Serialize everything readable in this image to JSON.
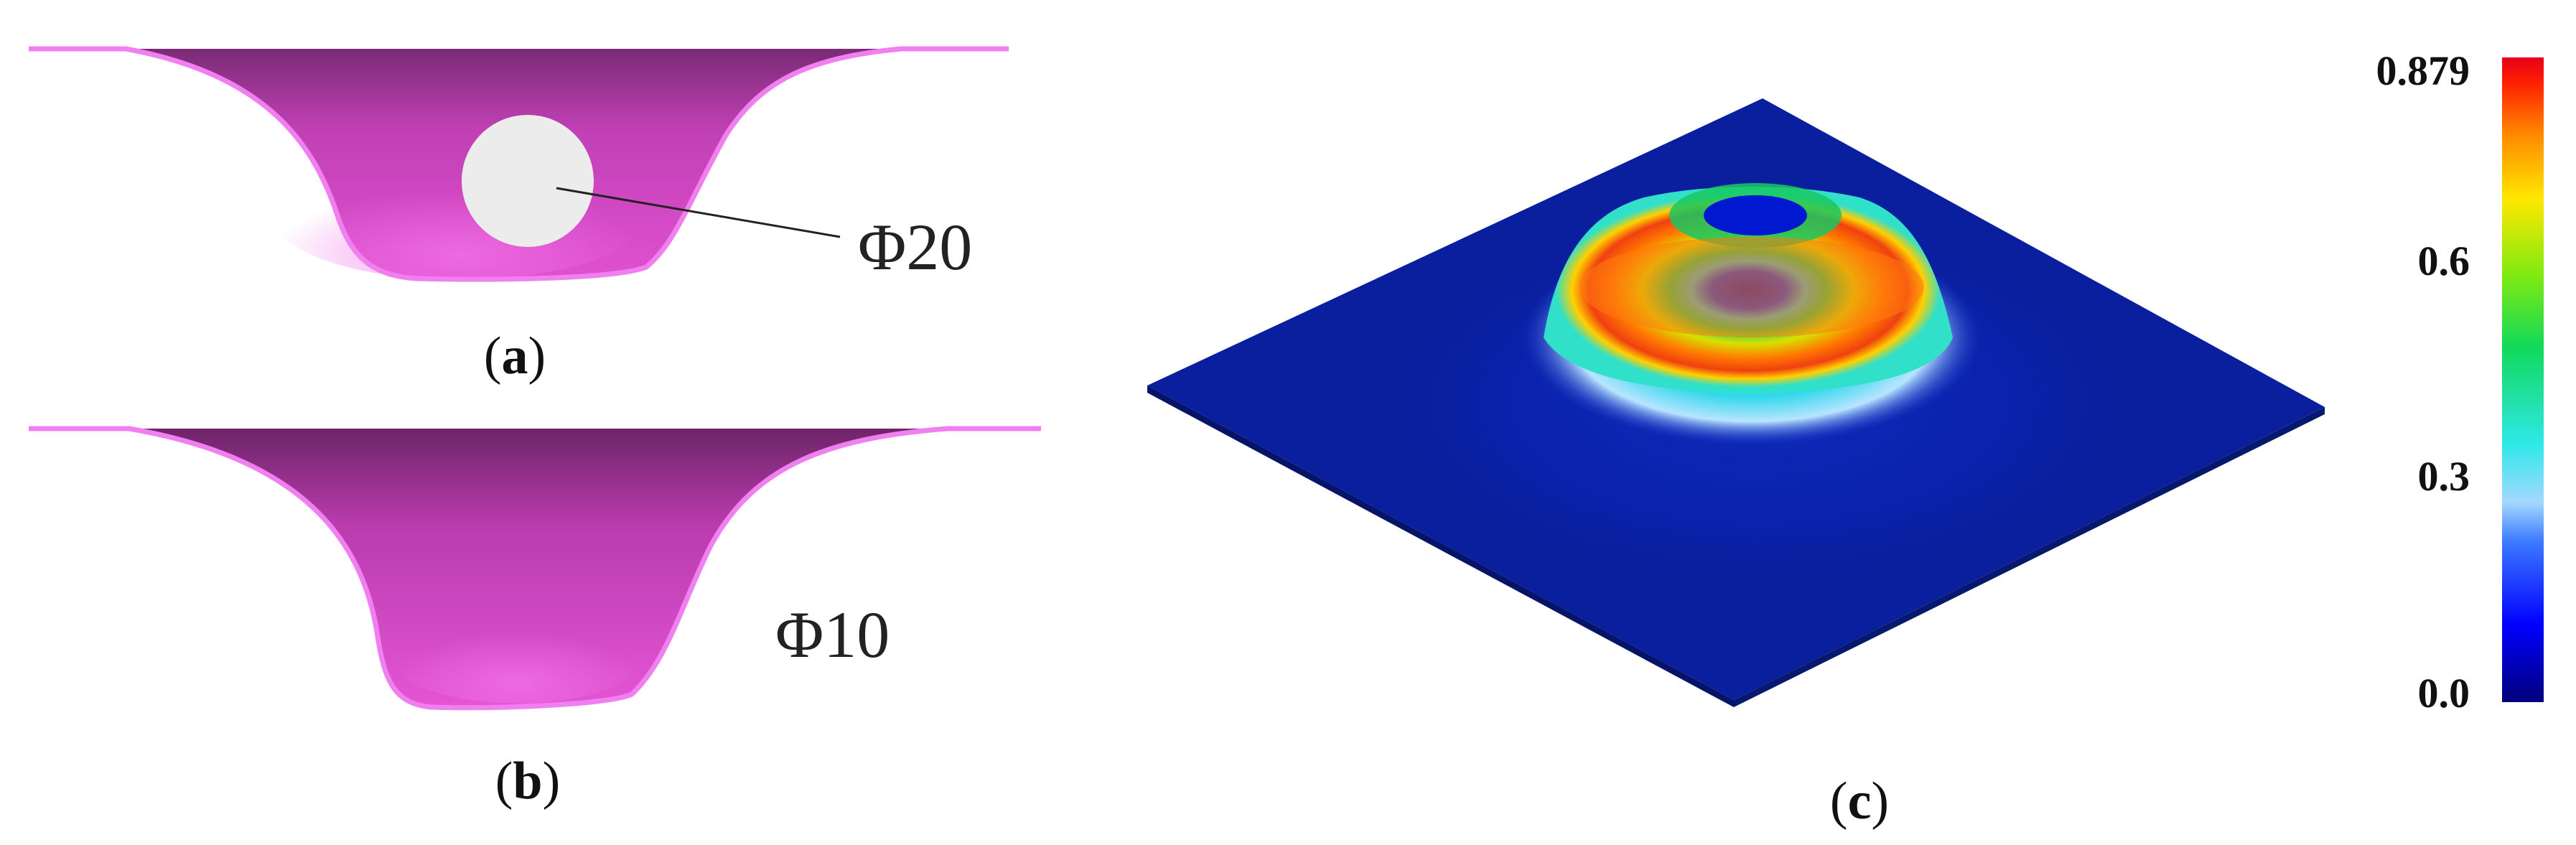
{
  "panels": {
    "a": {
      "label_open": "(",
      "label_letter": "a",
      "label_close": ")",
      "annotation": "Φ20"
    },
    "b": {
      "label_open": "(",
      "label_letter": "b",
      "label_close": ")",
      "annotation": "Φ10"
    },
    "c": {
      "label_open": "(",
      "label_letter": "c",
      "label_close": ")"
    }
  },
  "colorbar": {
    "ticks": [
      "0.879",
      "0.6",
      "0.3",
      "0.0"
    ],
    "colors": [
      "#00007a",
      "#0000ff",
      "#3d7bff",
      "#a4d8ff",
      "#2fe8e8",
      "#11d95a",
      "#7dea12",
      "#ffe800",
      "#ff8a00",
      "#ff2000",
      "#e8001a"
    ]
  },
  "colors": {
    "cup_body": "#d548c2",
    "cup_rim": "#f080f0",
    "hole_fill": "#ececec",
    "plate": "#0a1f9e"
  }
}
